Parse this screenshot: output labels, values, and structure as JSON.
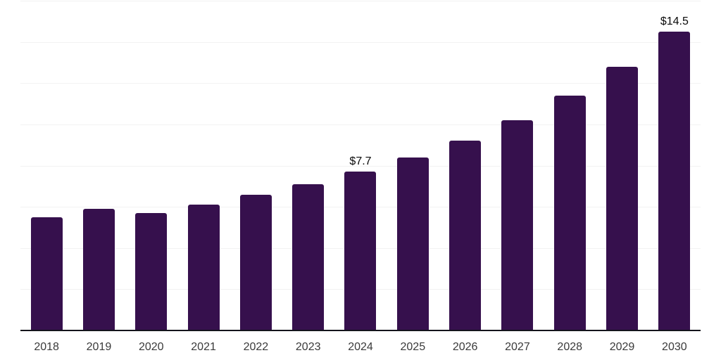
{
  "chart_data": {
    "type": "bar",
    "title": "",
    "xlabel": "",
    "ylabel": "",
    "categories": [
      "2018",
      "2019",
      "2020",
      "2021",
      "2022",
      "2023",
      "2024",
      "2025",
      "2026",
      "2027",
      "2028",
      "2029",
      "2030"
    ],
    "values": [
      5.5,
      5.9,
      5.7,
      6.1,
      6.6,
      7.1,
      7.7,
      8.4,
      9.2,
      10.2,
      11.4,
      12.8,
      14.5
    ],
    "value_labels": {
      "2024": "$7.7",
      "2030": "$14.5"
    },
    "ylim": [
      0,
      16
    ],
    "gridline_step": 2,
    "grid": true,
    "legend_position": "none",
    "colors": {
      "bar": "#36104d",
      "gridline": "#f2f2f2",
      "axis_line": "#14141c",
      "tick_label": "#3a3a3a",
      "value_label": "#0a0a0a",
      "background": "#ffffff"
    }
  }
}
